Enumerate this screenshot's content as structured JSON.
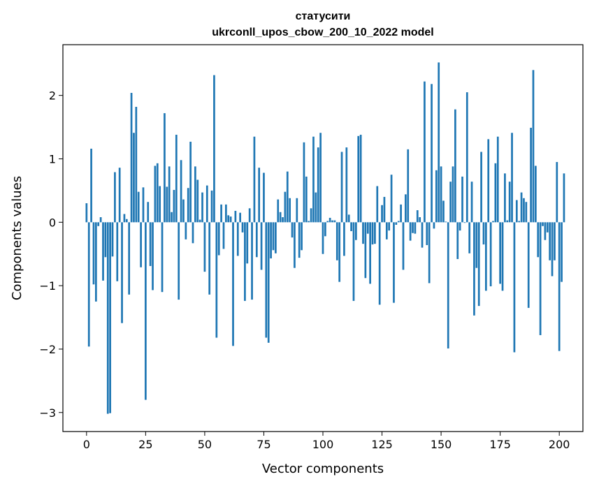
{
  "chart_data": {
    "type": "bar",
    "title_line1": "статусити",
    "title_line2": "ukrconll_upos_cbow_200_10_2022 model",
    "xlabel": "Vector components",
    "ylabel": "Components values",
    "xlim": [
      -10,
      210
    ],
    "ylim": [
      -3.3,
      2.8
    ],
    "x_ticks": [
      0,
      25,
      50,
      75,
      100,
      125,
      150,
      175,
      200
    ],
    "y_ticks": [
      -3,
      -2,
      -1,
      0,
      1,
      2
    ],
    "x_tick_labels": [
      "0",
      "25",
      "50",
      "75",
      "100",
      "125",
      "150",
      "175",
      "200"
    ],
    "y_tick_labels": [
      "−3",
      "−2",
      "−1",
      "0",
      "1",
      "2"
    ],
    "bar_color": "#1f77b4",
    "grid": false,
    "values": [
      0.3,
      -1.96,
      1.16,
      -0.98,
      -1.25,
      -0.06,
      0.08,
      -0.92,
      -0.55,
      -3.02,
      -3.01,
      -0.54,
      0.79,
      -0.93,
      0.86,
      -1.59,
      0.13,
      0.05,
      -1.14,
      2.04,
      1.41,
      1.82,
      0.48,
      -0.71,
      0.55,
      -2.8,
      0.32,
      -0.69,
      -1.07,
      0.89,
      0.93,
      0.57,
      -1.1,
      1.72,
      0.56,
      0.88,
      0.16,
      0.51,
      1.38,
      -1.22,
      0.98,
      0.36,
      -0.27,
      0.54,
      1.27,
      -0.33,
      0.88,
      0.67,
      0.04,
      0.47,
      -0.78,
      0.58,
      -1.14,
      0.5,
      2.32,
      -1.82,
      -0.52,
      0.28,
      -0.42,
      0.28,
      0.11,
      0.09,
      -1.95,
      0.18,
      -0.53,
      0.15,
      -0.16,
      -1.24,
      -0.65,
      0.22,
      -1.22,
      1.35,
      -0.55,
      0.86,
      -0.75,
      0.78,
      -1.82,
      -1.9,
      -0.57,
      -0.44,
      -0.49,
      0.36,
      0.16,
      0.08,
      0.48,
      0.8,
      0.38,
      -0.24,
      -0.72,
      0.38,
      -0.56,
      -0.44,
      1.26,
      0.72,
      0.02,
      0.22,
      1.35,
      0.47,
      1.18,
      1.41,
      -0.5,
      -0.22,
      0.02,
      0.07,
      0.03,
      0.03,
      -0.6,
      -0.94,
      1.11,
      -0.53,
      1.18,
      0.12,
      -0.14,
      -1.24,
      -0.28,
      1.36,
      1.38,
      -0.34,
      -0.88,
      -0.18,
      -0.97,
      -0.35,
      -0.34,
      0.57,
      -1.3,
      0.27,
      0.4,
      -0.27,
      -0.13,
      0.75,
      -1.27,
      -0.04,
      0.02,
      0.28,
      -0.75,
      0.44,
      1.15,
      -0.29,
      -0.17,
      -0.18,
      0.19,
      0.08,
      -0.4,
      2.22,
      -0.36,
      -0.96,
      2.18,
      -0.1,
      0.82,
      2.52,
      0.88,
      0.34,
      0.01,
      -1.99,
      0.64,
      0.88,
      1.78,
      -0.58,
      -0.13,
      0.72,
      -0.01,
      2.05,
      -0.49,
      0.64,
      -1.47,
      -0.72,
      -1.32,
      1.11,
      -0.35,
      -1.08,
      1.31,
      -1.01,
      0.02,
      0.93,
      1.35,
      -0.97,
      -1.08,
      0.77,
      0.03,
      0.64,
      1.41,
      -2.05,
      0.35,
      0.02,
      0.47,
      0.38,
      0.32,
      -1.35,
      1.49,
      2.4,
      0.89,
      -0.55,
      -1.78,
      -0.06,
      -0.28,
      -0.16,
      -0.6,
      -0.85,
      -0.6,
      0.95,
      -2.03,
      -0.94,
      0.77
    ]
  }
}
